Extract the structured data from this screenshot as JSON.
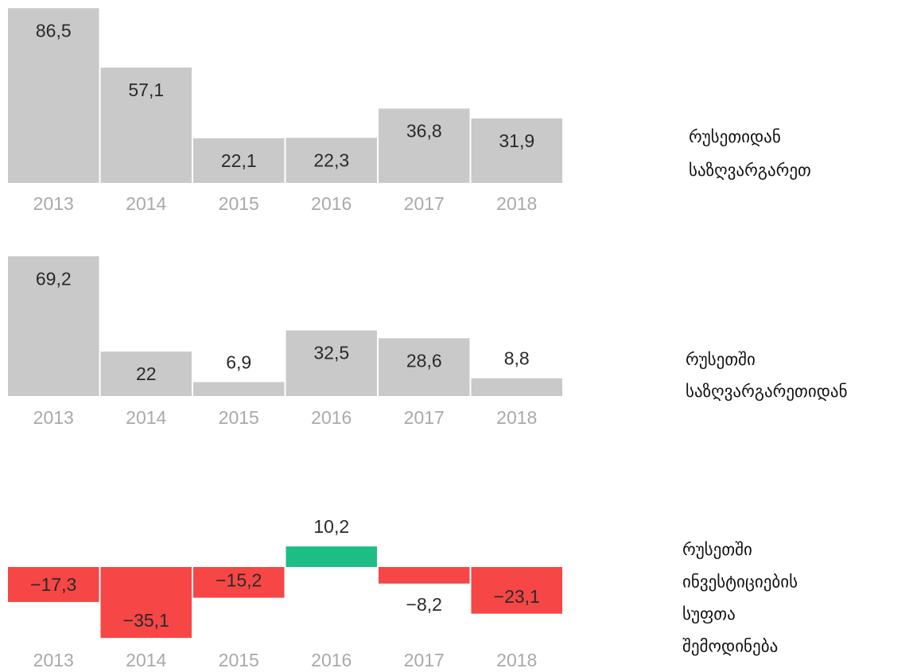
{
  "chart_data": [
    {
      "type": "bar",
      "title": [
        "რუსეთიდან",
        "საზღვარგარეთ"
      ],
      "categories": [
        "2013",
        "2014",
        "2015",
        "2016",
        "2017",
        "2018"
      ],
      "values": [
        86.5,
        57.1,
        22.1,
        22.3,
        36.8,
        31.9
      ],
      "value_labels": [
        "86,5",
        "57,1",
        "22,1",
        "22,3",
        "36,8",
        "31,9"
      ],
      "color": "#c9c9c9"
    },
    {
      "type": "bar",
      "title": [
        "რუსეთში",
        "საზღვარგარეთიდან"
      ],
      "categories": [
        "2013",
        "2014",
        "2015",
        "2016",
        "2017",
        "2018"
      ],
      "values": [
        69.2,
        22,
        6.9,
        32.5,
        28.6,
        8.8
      ],
      "value_labels": [
        "69,2",
        "22",
        "6,9",
        "32,5",
        "28,6",
        "8,8"
      ],
      "color": "#c9c9c9"
    },
    {
      "type": "bar",
      "title": [
        "რუსეთში",
        "ინვესტიციების",
        "სუფთა",
        "შემოდინება"
      ],
      "categories": [
        "2013",
        "2014",
        "2015",
        "2016",
        "2017",
        "2018"
      ],
      "values": [
        -17.3,
        -35.1,
        -15.2,
        10.2,
        -8.2,
        -23.1
      ],
      "value_labels": [
        "−17,3",
        "−35,1",
        "−15,2",
        "10,2",
        "−8,2",
        "−23,1"
      ],
      "color": "#1dbe86",
      "negative_color": "#f64646"
    }
  ]
}
